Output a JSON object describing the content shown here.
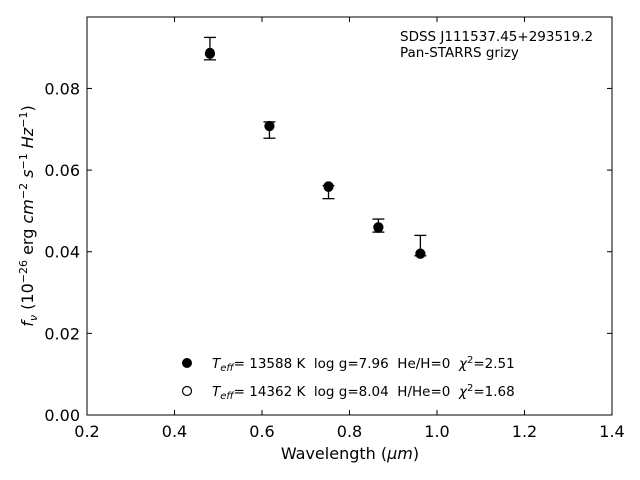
{
  "chart_data": {
    "type": "scatter",
    "title": "",
    "xlabel": "Wavelength (μm)",
    "ylabel": "f_ν (10^-26 erg cm^-2 s^-1 Hz^-1)",
    "xlim": [
      0.2,
      1.4
    ],
    "ylim": [
      0.0,
      0.0975
    ],
    "x_ticks": [
      "0.2",
      "0.4",
      "0.6",
      "0.8",
      "1.0",
      "1.2",
      "1.4"
    ],
    "y_ticks": [
      "0.00",
      "0.02",
      "0.04",
      "0.06",
      "0.08"
    ],
    "grid": false,
    "annotations": [
      "SDSS J111537.45+293519.2",
      "Pan-STARRS grizy"
    ],
    "observed": {
      "x": [
        0.481,
        0.617,
        0.752,
        0.866,
        0.962
      ],
      "y": [
        0.0895,
        0.07,
        0.055,
        0.0463,
        0.0395
      ],
      "yerr_low": [
        0.0025,
        0.0022,
        0.002,
        0.0015,
        0.0005
      ],
      "yerr_high": [
        0.003,
        0.0018,
        0.0012,
        0.0017,
        0.0045
      ]
    },
    "series": [
      {
        "name": "T_eff= 13588 K  log g=7.96  He/H=0  χ²=2.51",
        "marker": "filled-circle",
        "x": [
          0.481,
          0.617,
          0.752,
          0.866,
          0.962
        ],
        "y": [
          0.0885,
          0.0708,
          0.056,
          0.046,
          0.0395
        ]
      },
      {
        "name": "T_eff= 14362 K  log g=8.04  H/He=0  χ²=1.68",
        "marker": "open-circle",
        "x": [
          0.481,
          0.617,
          0.752,
          0.866,
          0.962
        ],
        "y": [
          0.0888,
          0.0707,
          0.0558,
          0.0458,
          0.0396
        ]
      }
    ],
    "legend_position": "lower-center"
  }
}
